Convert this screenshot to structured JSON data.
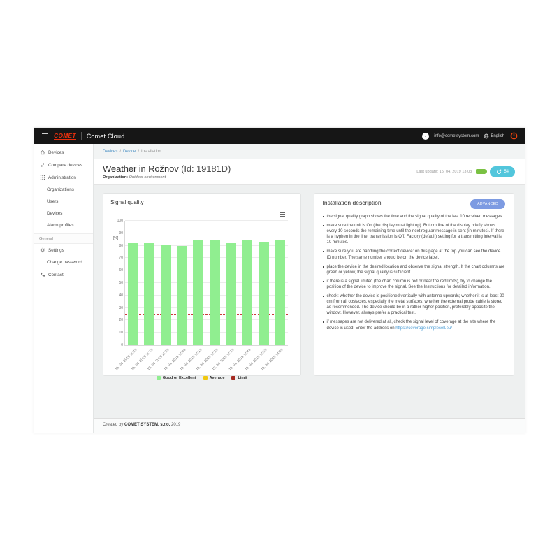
{
  "header": {
    "logo_text": "COMET",
    "brand": "Comet Cloud",
    "avatar_letter": "i",
    "user_email": "info@cometsystem.com",
    "language": "English"
  },
  "sidebar": {
    "items": [
      {
        "label": "Devices",
        "icon": "home-icon",
        "indent": false
      },
      {
        "label": "Compare devices",
        "icon": "compare-icon",
        "indent": false
      },
      {
        "label": "Administration",
        "icon": "grid-icon",
        "indent": false
      },
      {
        "label": "Organizations",
        "icon": "",
        "indent": true
      },
      {
        "label": "Users",
        "icon": "",
        "indent": true
      },
      {
        "label": "Devices",
        "icon": "",
        "indent": true
      },
      {
        "label": "Alarm profiles",
        "icon": "",
        "indent": true
      }
    ],
    "section_label": "General",
    "general_items": [
      {
        "label": "Settings",
        "icon": "gear-icon",
        "indent": false
      },
      {
        "label": "Change password",
        "icon": "",
        "indent": true
      },
      {
        "label": "Contact",
        "icon": "phone-icon",
        "indent": false
      }
    ]
  },
  "breadcrumb": [
    "Devices",
    "Device",
    "Installation"
  ],
  "page": {
    "title": "Weather in Rožnov",
    "title_id": "(Id: 19181D)",
    "organization_label": "Organization:",
    "organization_value": "Outdoor environment",
    "last_update": "Last update: 15. 04. 2019 13:03",
    "refresh_count": "54"
  },
  "chart_card": {
    "title": "Signal quality"
  },
  "chart_data": {
    "type": "bar",
    "title": "Signal quality",
    "ylabel": "[%]",
    "ylim": [
      0,
      100
    ],
    "yticks": [
      0,
      10,
      20,
      30,
      40,
      50,
      60,
      70,
      80,
      90,
      100
    ],
    "categories": [
      "15. 04. 2019 11:33",
      "15. 04. 2019 11:43",
      "15. 04. 2019 11:53",
      "15. 04. 2019 12:03",
      "15. 04. 2019 12:13",
      "15. 04. 2019 12:23",
      "15. 04. 2019 12:33",
      "15. 04. 2019 12:43",
      "15. 04. 2019 12:53",
      "15. 04. 2019 13:03"
    ],
    "values": [
      82,
      82,
      81,
      80,
      84,
      84,
      82,
      85,
      83,
      84
    ],
    "bar_color": "#90ee90",
    "plot_lines": [
      {
        "value": 45,
        "color": "#8bd48b"
      },
      {
        "value": 24,
        "color": "#cc3a3a"
      }
    ],
    "legend": [
      {
        "label": "Good or Excellent",
        "color": "#90ee90"
      },
      {
        "label": "Average",
        "color": "#f0c810"
      },
      {
        "label": "Limit",
        "color": "#a52a21"
      }
    ],
    "grid": true,
    "legend_position": "bottom"
  },
  "install_card": {
    "title": "Installation description",
    "advanced_label": "ADVANCED",
    "bullets": [
      {
        "text": "the signal quality graph shows the time and the signal quality of the last 10 received messages."
      },
      {
        "text": "make sure the unit is On (the display must light up). Bottom line of the display briefly shows every 10 seconds the remaining time until the next regular message is sent (in minutes). If there is a hyphen in the line, transmission is Off. Factory (default) setting for a transmitting interval is 10 minutes."
      },
      {
        "text": "make sure you are handling the correct device: on this page at the top you can see the device ID number. The same number should be on the device label."
      },
      {
        "text": "place the device in the desired location and observe the signal strength. If the chart columns are green or yellow, the signal quality is sufficient."
      },
      {
        "text": "if there is a signal limited (the chart column is red or near the red limits), try to change the position of the device to improve the signal. See the Instructions for detailed information."
      },
      {
        "text": "check: whether the device is positioned vertically with antenna upwards; whether it is at least 20 cm from all obstacles, especially the metal surfaces; whether the external probe cable is stored as recommended. The device should be in a rather higher position, preferably opposite the window. However, always prefer a practical test."
      },
      {
        "text": "if messages are not delivered at all, check the signal level of coverage at the site where the device is used. Enter the address on ",
        "link": "https://coverage.simplecell.eu/"
      }
    ]
  },
  "footer": {
    "prefix": "Created by",
    "company": "COMET SYSTEM, s.r.o.",
    "year": "2019"
  },
  "colors": {
    "accent_red": "#e8300e",
    "refresh_button": "#52c6dc",
    "battery_green": "#7ac143",
    "advanced_button": "#7d9be2",
    "link_blue": "#4a9bd4"
  }
}
